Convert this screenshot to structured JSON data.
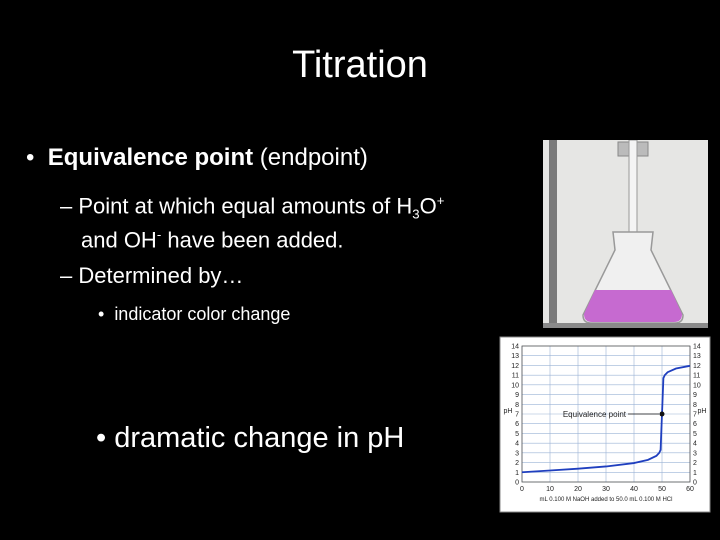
{
  "title": "Titration",
  "bullets": [
    {
      "bold": "Equivalence point",
      "text": "(endpoint)",
      "sub": [
        {
          "parts": [
            "Point at which equal amounts of H",
            "3",
            "O",
            "+"
          ],
          "line2": [
            "and OH",
            "-",
            " have been added."
          ]
        },
        {
          "parts": [
            "Determined by…"
          ],
          "sub": [
            "indicator color change"
          ]
        }
      ]
    }
  ],
  "big_bullet": "dramatic change in pH",
  "figure": {
    "type": "line",
    "y_label": "pH",
    "x_label": "mL 0.100 M NaOH added to 50.0 mL 0.100 M HCl",
    "annotation": "Equivalence point",
    "annotation_point": {
      "x": 50,
      "y": 7
    },
    "x": [
      0,
      10,
      20,
      30,
      40,
      45,
      48,
      49,
      49.5,
      50,
      50.5,
      51,
      52,
      55,
      60
    ],
    "values": [
      1,
      1.18,
      1.37,
      1.6,
      1.95,
      2.28,
      2.69,
      3,
      3.3,
      7,
      10.7,
      11,
      11.3,
      11.68,
      11.96
    ],
    "color": "#1f3fbf",
    "xlim": [
      0,
      60
    ],
    "ylim": [
      0,
      14
    ],
    "xticks": [
      0,
      10,
      20,
      30,
      40,
      50,
      60
    ],
    "yticks": [
      0,
      1,
      2,
      3,
      4,
      5,
      6,
      7,
      8,
      9,
      10,
      11,
      12,
      13,
      14
    ],
    "grid": true
  }
}
